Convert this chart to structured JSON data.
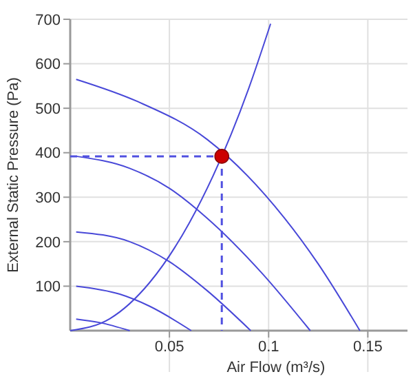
{
  "chart_data": {
    "type": "line",
    "xlabel": "Air Flow (m³/s)",
    "ylabel": "External Static Pressure (Pa)",
    "xlim": [
      0,
      0.17
    ],
    "ylim": [
      0,
      700
    ],
    "xticks": [
      0.05,
      0.1,
      0.15
    ],
    "yticks": [
      100,
      200,
      300,
      400,
      500,
      600,
      700
    ],
    "grid": true,
    "marker": "none",
    "line_style": "solid",
    "series": [
      {
        "color": "#4848d8",
        "x": [
          0.003,
          0.034,
          0.069,
          0.108,
          0.125,
          0.146
        ],
        "values": [
          565,
          515,
          430,
          253,
          150,
          0
        ]
      },
      {
        "color": "#4848d8",
        "x": [
          0.003,
          0.03,
          0.05,
          0.069,
          0.0965,
          0.121
        ],
        "values": [
          392,
          365,
          320,
          253,
          130,
          0
        ]
      },
      {
        "color": "#4848d8",
        "x": [
          0.003,
          0.03,
          0.05,
          0.069,
          0.091
        ],
        "values": [
          222,
          200,
          155,
          90,
          0
        ]
      },
      {
        "color": "#4848d8",
        "x": [
          0.003,
          0.025,
          0.04,
          0.061
        ],
        "values": [
          100,
          82,
          55,
          0
        ]
      },
      {
        "color": "#4848d8",
        "x": [
          0.003,
          0.015,
          0.03
        ],
        "values": [
          26,
          18,
          0
        ]
      },
      {
        "color": "#4848d8",
        "x": [
          0,
          0.02,
          0.04,
          0.06,
          0.09,
          0.101
        ],
        "values": [
          0,
          27,
          108,
          242,
          545,
          690
        ]
      },
      {
        "color": "#5050e0",
        "line_style": "dashed",
        "x": [
          0,
          0.0764
        ],
        "values": [
          392,
          392
        ]
      },
      {
        "color": "#5050e0",
        "line_style": "dashed",
        "x": [
          0.0764,
          0.0764
        ],
        "values": [
          392,
          0
        ]
      },
      {
        "type": "scatter",
        "marker": "circle",
        "color": "#cc0000",
        "x": [
          0.0764
        ],
        "values": [
          392
        ]
      }
    ]
  }
}
